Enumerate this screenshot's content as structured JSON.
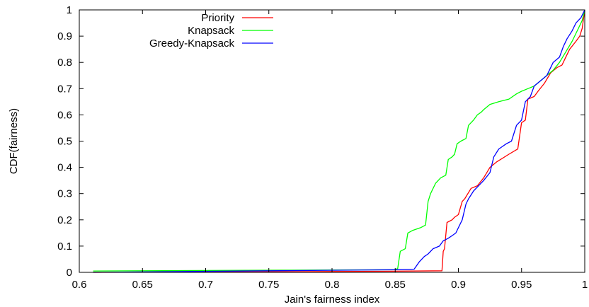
{
  "chart_data": {
    "type": "line",
    "xlabel": "Jain's fairness index",
    "ylabel": "CDF(fairness)",
    "xlim": [
      0.6,
      1.0
    ],
    "ylim": [
      0,
      1
    ],
    "grid": false,
    "legend_position": "top-left",
    "x_ticks": [
      "0.6",
      "0.65",
      "0.7",
      "0.75",
      "0.8",
      "0.85",
      "0.9",
      "0.95",
      "1"
    ],
    "y_ticks": [
      "0",
      "0.1",
      "0.2",
      "0.3",
      "0.4",
      "0.5",
      "0.6",
      "0.7",
      "0.8",
      "0.9",
      "1"
    ],
    "series": [
      {
        "name": "Priority",
        "color": "#ff0000",
        "points": [
          [
            0.611,
            0.0
          ],
          [
            0.75,
            0.002
          ],
          [
            0.84,
            0.004
          ],
          [
            0.887,
            0.006
          ],
          [
            0.888,
            0.08
          ],
          [
            0.889,
            0.09
          ],
          [
            0.891,
            0.19
          ],
          [
            0.895,
            0.2
          ],
          [
            0.897,
            0.21
          ],
          [
            0.9,
            0.22
          ],
          [
            0.903,
            0.27
          ],
          [
            0.905,
            0.28
          ],
          [
            0.91,
            0.32
          ],
          [
            0.915,
            0.33
          ],
          [
            0.92,
            0.36
          ],
          [
            0.925,
            0.4
          ],
          [
            0.93,
            0.42
          ],
          [
            0.94,
            0.45
          ],
          [
            0.947,
            0.47
          ],
          [
            0.95,
            0.57
          ],
          [
            0.953,
            0.58
          ],
          [
            0.955,
            0.66
          ],
          [
            0.96,
            0.67
          ],
          [
            0.963,
            0.69
          ],
          [
            0.968,
            0.72
          ],
          [
            0.973,
            0.76
          ],
          [
            0.978,
            0.78
          ],
          [
            0.982,
            0.79
          ],
          [
            0.985,
            0.82
          ],
          [
            0.988,
            0.85
          ],
          [
            0.993,
            0.88
          ],
          [
            0.996,
            0.9
          ],
          [
            0.998,
            0.93
          ],
          [
            1.0,
            1.0
          ]
        ]
      },
      {
        "name": "Knapsack",
        "color": "#00ff00",
        "points": [
          [
            0.611,
            0.005
          ],
          [
            0.75,
            0.008
          ],
          [
            0.85,
            0.01
          ],
          [
            0.852,
            0.015
          ],
          [
            0.854,
            0.08
          ],
          [
            0.858,
            0.09
          ],
          [
            0.86,
            0.15
          ],
          [
            0.864,
            0.16
          ],
          [
            0.87,
            0.17
          ],
          [
            0.874,
            0.18
          ],
          [
            0.876,
            0.27
          ],
          [
            0.878,
            0.3
          ],
          [
            0.882,
            0.34
          ],
          [
            0.886,
            0.36
          ],
          [
            0.89,
            0.37
          ],
          [
            0.892,
            0.43
          ],
          [
            0.895,
            0.44
          ],
          [
            0.897,
            0.45
          ],
          [
            0.899,
            0.49
          ],
          [
            0.902,
            0.5
          ],
          [
            0.906,
            0.51
          ],
          [
            0.908,
            0.56
          ],
          [
            0.912,
            0.58
          ],
          [
            0.915,
            0.6
          ],
          [
            0.918,
            0.61
          ],
          [
            0.92,
            0.62
          ],
          [
            0.925,
            0.64
          ],
          [
            0.932,
            0.65
          ],
          [
            0.94,
            0.66
          ],
          [
            0.946,
            0.68
          ],
          [
            0.95,
            0.69
          ],
          [
            0.955,
            0.7
          ],
          [
            0.96,
            0.71
          ],
          [
            0.965,
            0.73
          ],
          [
            0.97,
            0.75
          ],
          [
            0.975,
            0.77
          ],
          [
            0.98,
            0.8
          ],
          [
            0.985,
            0.84
          ],
          [
            0.99,
            0.88
          ],
          [
            0.995,
            0.93
          ],
          [
            0.998,
            0.96
          ],
          [
            1.0,
            1.0
          ]
        ]
      },
      {
        "name": "Greedy-Knapsack",
        "color": "#0000ff",
        "points": [
          [
            0.611,
            0.0
          ],
          [
            0.75,
            0.006
          ],
          [
            0.85,
            0.01
          ],
          [
            0.865,
            0.012
          ],
          [
            0.869,
            0.04
          ],
          [
            0.873,
            0.06
          ],
          [
            0.876,
            0.07
          ],
          [
            0.88,
            0.09
          ],
          [
            0.885,
            0.1
          ],
          [
            0.888,
            0.12
          ],
          [
            0.892,
            0.13
          ],
          [
            0.895,
            0.14
          ],
          [
            0.898,
            0.15
          ],
          [
            0.9,
            0.17
          ],
          [
            0.903,
            0.2
          ],
          [
            0.906,
            0.26
          ],
          [
            0.908,
            0.28
          ],
          [
            0.912,
            0.31
          ],
          [
            0.916,
            0.33
          ],
          [
            0.92,
            0.35
          ],
          [
            0.925,
            0.38
          ],
          [
            0.928,
            0.44
          ],
          [
            0.932,
            0.47
          ],
          [
            0.935,
            0.48
          ],
          [
            0.938,
            0.49
          ],
          [
            0.942,
            0.5
          ],
          [
            0.946,
            0.56
          ],
          [
            0.95,
            0.58
          ],
          [
            0.953,
            0.65
          ],
          [
            0.957,
            0.67
          ],
          [
            0.96,
            0.71
          ],
          [
            0.965,
            0.73
          ],
          [
            0.97,
            0.75
          ],
          [
            0.975,
            0.8
          ],
          [
            0.98,
            0.82
          ],
          [
            0.983,
            0.86
          ],
          [
            0.986,
            0.89
          ],
          [
            0.99,
            0.92
          ],
          [
            0.993,
            0.95
          ],
          [
            0.997,
            0.97
          ],
          [
            1.0,
            1.0
          ]
        ]
      }
    ]
  }
}
